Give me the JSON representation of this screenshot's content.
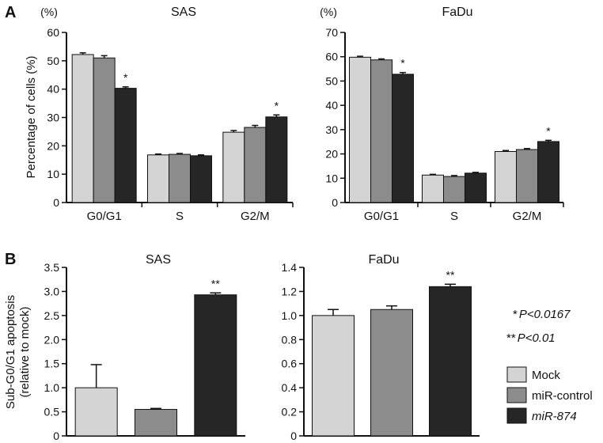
{
  "panel_labels": {
    "a": "A",
    "b": "B"
  },
  "chart_data": [
    {
      "type": "bar",
      "title": "SAS",
      "unit_label": "(%)",
      "ylabel": "Percentage of cells (%)",
      "categories": [
        "G0/G1",
        "S",
        "G2/M"
      ],
      "ylim": [
        0,
        60
      ],
      "yticks": [
        "0",
        "10",
        "20",
        "30",
        "40",
        "50",
        "60"
      ],
      "series": [
        {
          "name": "Mock",
          "values": [
            52.2,
            16.8,
            24.8
          ],
          "errors": [
            0.6,
            0.3,
            0.6
          ]
        },
        {
          "name": "miR-control",
          "values": [
            51.0,
            17.0,
            26.5
          ],
          "errors": [
            0.8,
            0.3,
            0.7
          ]
        },
        {
          "name": "miR-874",
          "values": [
            40.3,
            16.5,
            30.2
          ],
          "errors": [
            0.5,
            0.3,
            0.7
          ]
        }
      ],
      "annotations": [
        {
          "category": "G0/G1",
          "series": "miR-874",
          "text": "*"
        },
        {
          "category": "G2/M",
          "series": "miR-874",
          "text": "*"
        }
      ]
    },
    {
      "type": "bar",
      "title": "FaDu",
      "unit_label": "(%)",
      "ylabel": "",
      "categories": [
        "G0/G1",
        "S",
        "G2/M"
      ],
      "ylim": [
        0,
        70
      ],
      "yticks": [
        "0",
        "10",
        "20",
        "30",
        "40",
        "50",
        "60",
        "70"
      ],
      "series": [
        {
          "name": "Mock",
          "values": [
            59.8,
            11.3,
            21.0
          ],
          "errors": [
            0.4,
            0.3,
            0.4
          ]
        },
        {
          "name": "miR-control",
          "values": [
            58.7,
            10.7,
            21.8
          ],
          "errors": [
            0.4,
            0.4,
            0.4
          ]
        },
        {
          "name": "miR-874",
          "values": [
            52.8,
            12.1,
            25.1
          ],
          "errors": [
            0.7,
            0.3,
            0.5
          ]
        }
      ],
      "annotations": [
        {
          "category": "G0/G1",
          "series": "miR-874",
          "text": "*"
        },
        {
          "category": "G2/M",
          "series": "miR-874",
          "text": "*"
        }
      ]
    },
    {
      "type": "bar",
      "title": "SAS",
      "ylabel": "Sub-G0/G1 apoptosis",
      "ylabel2": "(relative to mock)",
      "categories": [
        "Mock",
        "miR-control",
        "miR-874"
      ],
      "ylim": [
        0,
        3.5
      ],
      "yticks": [
        "0",
        "0.5",
        "1.0",
        "1.5",
        "2.0",
        "2.5",
        "3.0",
        "3.5"
      ],
      "values": [
        1.0,
        0.55,
        2.93
      ],
      "errors": [
        0.48,
        0.02,
        0.04
      ],
      "annotations": [
        {
          "category": "miR-874",
          "text": "**"
        }
      ]
    },
    {
      "type": "bar",
      "title": "FaDu",
      "ylabel": "",
      "categories": [
        "Mock",
        "miR-control",
        "miR-874"
      ],
      "ylim": [
        0,
        1.4
      ],
      "yticks": [
        "0",
        "0.2",
        "0.4",
        "0.6",
        "0.8",
        "1.0",
        "1.2",
        "1.4"
      ],
      "values": [
        1.0,
        1.05,
        1.24
      ],
      "errors": [
        0.05,
        0.03,
        0.02
      ],
      "annotations": [
        {
          "category": "miR-874",
          "text": "**"
        }
      ]
    }
  ],
  "significance_notes": [
    {
      "stars": "*",
      "text": "P<0.0167"
    },
    {
      "stars": "**",
      "text": "P<0.01"
    }
  ],
  "legend": [
    {
      "label": "Mock",
      "color": "#d4d4d4"
    },
    {
      "label": "miR-control",
      "color": "#8c8c8c"
    },
    {
      "label": "miR-874",
      "color": "#262626"
    }
  ],
  "colors": {
    "Mock": "#d4d4d4",
    "miR-control": "#8c8c8c",
    "miR-874": "#262626"
  }
}
